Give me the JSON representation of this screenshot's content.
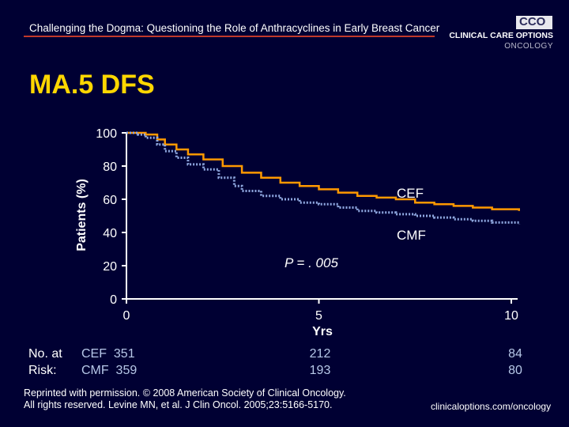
{
  "header": {
    "text": "Challenging the Dogma: Questioning the Role of Anthracyclines in Early Breast Cancer"
  },
  "logo": {
    "mark": "CCO",
    "line1": "CLINICAL CARE OPTIONS",
    "line2": "ONCOLOGY"
  },
  "slide_title": "MA.5 DFS",
  "chart_data": {
    "type": "line",
    "title": "MA.5 DFS",
    "xlabel": "Yrs",
    "ylabel": "Patients (%)",
    "xlim": [
      0,
      10
    ],
    "ylim": [
      0,
      100
    ],
    "x_ticks": [
      "0",
      "5",
      "10"
    ],
    "y_ticks": [
      "0",
      "20",
      "40",
      "60",
      "80",
      "100"
    ],
    "series": [
      {
        "name": "CEF",
        "color": "#ff9900",
        "style": "solid",
        "x": [
          0,
          0.3,
          0.5,
          0.8,
          1.0,
          1.3,
          1.6,
          2.0,
          2.5,
          3.0,
          3.5,
          4.0,
          4.5,
          5.0,
          5.5,
          6.0,
          6.5,
          7.0,
          7.5,
          8.0,
          8.5,
          9.0,
          9.5,
          10.2
        ],
        "values": [
          100,
          100,
          99,
          96,
          93,
          90,
          87,
          84,
          80,
          76,
          73,
          70,
          68,
          66,
          64,
          62,
          61,
          60,
          58,
          57,
          56,
          55,
          54,
          53
        ]
      },
      {
        "name": "CMF",
        "color": "#8fa8e0",
        "style": "dotted",
        "x": [
          0,
          0.3,
          0.5,
          0.8,
          1.0,
          1.3,
          1.6,
          2.0,
          2.4,
          2.8,
          3.0,
          3.5,
          4.0,
          4.5,
          5.0,
          5.5,
          6.0,
          6.5,
          7.0,
          7.5,
          8.0,
          8.5,
          9.0,
          9.5,
          10.2
        ],
        "values": [
          100,
          99,
          97,
          93,
          89,
          85,
          81,
          78,
          73,
          68,
          65,
          62,
          60,
          58,
          57,
          55,
          53,
          52,
          51,
          50,
          49,
          48,
          47,
          46,
          45
        ]
      }
    ],
    "annotations": [
      {
        "text": "CEF"
      },
      {
        "text": "CMF"
      },
      {
        "text": "P = . 005"
      }
    ]
  },
  "risk_table": {
    "label_line1": "No. at",
    "label_line2": "Risk:",
    "arm1": "CEF  351",
    "arm2": "CMF  359",
    "col5": [
      "212",
      "193"
    ],
    "col10": [
      "84",
      "80"
    ]
  },
  "credit": {
    "line1": "Reprinted with permission. © 2008 American Society of Clinical Oncology.",
    "line2": "All rights reserved. Levine MN, et al. J Clin Oncol. 2005;23:5166-5170."
  },
  "footer_url": "clinicaloptions.com/oncology"
}
